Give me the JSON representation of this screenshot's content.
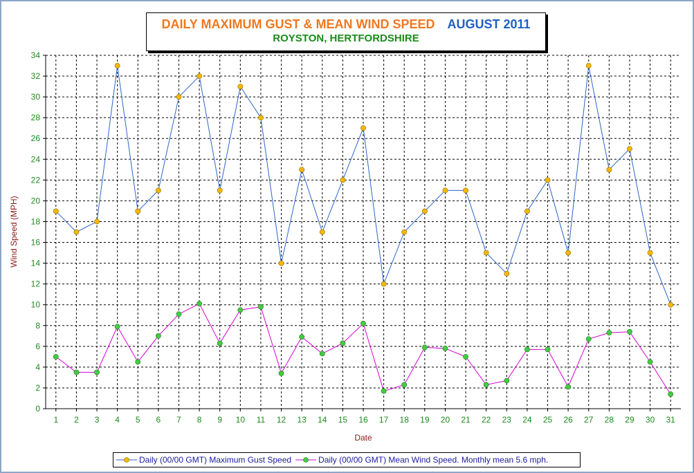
{
  "title": {
    "main": "DAILY MAXIMUM GUST & MEAN WIND SPEED",
    "date": "AUGUST 2011",
    "subtitle": "ROYSTON, HERTFORDSHIRE"
  },
  "chart_data": {
    "type": "line",
    "title": "DAILY MAXIMUM GUST & MEAN WIND SPEED AUGUST 2011",
    "subtitle": "ROYSTON, HERTFORDSHIRE",
    "xlabel": "Date",
    "ylabel": "Wind Speed (MPH)",
    "ylim": [
      0,
      34
    ],
    "ytick_step": 2,
    "grid": true,
    "legend_position": "bottom",
    "categories": [
      1,
      2,
      3,
      4,
      5,
      6,
      7,
      8,
      9,
      10,
      11,
      12,
      13,
      14,
      15,
      16,
      17,
      18,
      19,
      20,
      21,
      22,
      23,
      24,
      25,
      26,
      27,
      28,
      29,
      30,
      31
    ],
    "series": [
      {
        "name": "Daily (00/00 GMT) Maximum Gust Speed",
        "color": "#2e64c8",
        "marker_color": "#f5b800",
        "values": [
          19,
          17,
          18,
          33,
          19,
          21,
          30,
          32,
          21,
          31,
          28,
          14,
          23,
          17,
          22,
          27,
          12,
          17,
          19,
          21,
          21,
          15,
          13,
          19,
          22,
          15,
          33,
          23,
          25,
          15,
          10
        ]
      },
      {
        "name": "Daily (00/00 GMT) Mean Wind Speed. Monthly mean 5.6 mph.",
        "color": "#d400d4",
        "marker_color": "#44cc44",
        "values": [
          5.0,
          3.5,
          3.5,
          7.9,
          4.5,
          7.0,
          9.1,
          10.1,
          6.3,
          9.5,
          9.8,
          3.4,
          6.9,
          5.3,
          6.3,
          8.2,
          1.7,
          2.3,
          5.9,
          5.8,
          5.0,
          2.3,
          2.7,
          5.7,
          5.7,
          2.1,
          6.7,
          7.3,
          7.4,
          4.5,
          1.4
        ]
      }
    ]
  }
}
